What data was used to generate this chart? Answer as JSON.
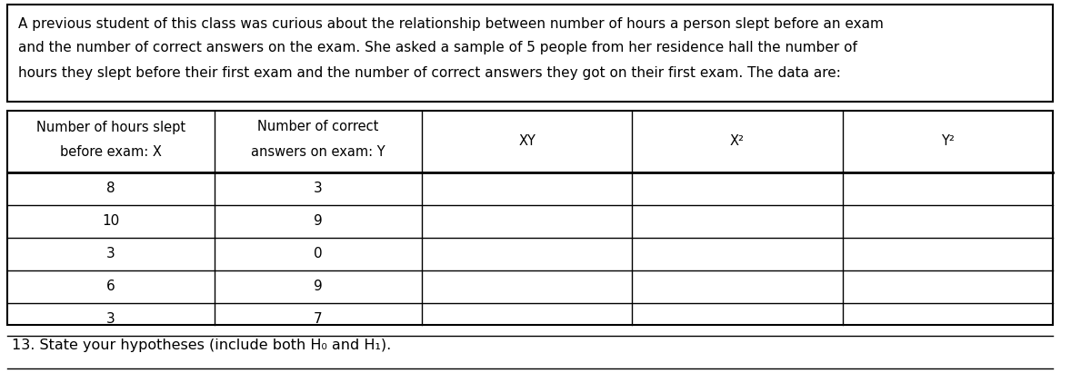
{
  "paragraph_text_lines": [
    "A previous student of this class was curious about the relationship between number of hours a person slept before an exam",
    "and the number of correct answers on the exam. She asked a sample of 5 people from her residence hall the number of",
    "hours they slept before their first exam and the number of correct answers they got on their first exam. The data are:"
  ],
  "header_row1": [
    "Number of hours slept",
    "Number of correct",
    "",
    "",
    ""
  ],
  "header_row2": [
    "before exam: X",
    "answers on exam: Y",
    "XY",
    "X²",
    "Y²"
  ],
  "data_rows": [
    [
      "8",
      "3",
      "",
      "",
      ""
    ],
    [
      "10",
      "9",
      "",
      "",
      ""
    ],
    [
      "3",
      "0",
      "",
      "",
      ""
    ],
    [
      "6",
      "9",
      "",
      "",
      ""
    ],
    [
      "3",
      "7",
      "",
      "",
      ""
    ]
  ],
  "totals_row": [
    "",
    "",
    "",
    "",
    ""
  ],
  "footer_text": "13. State your hypotheses (include both H₀ and H₁).",
  "bg_color": "#ffffff",
  "text_color": "#000000"
}
